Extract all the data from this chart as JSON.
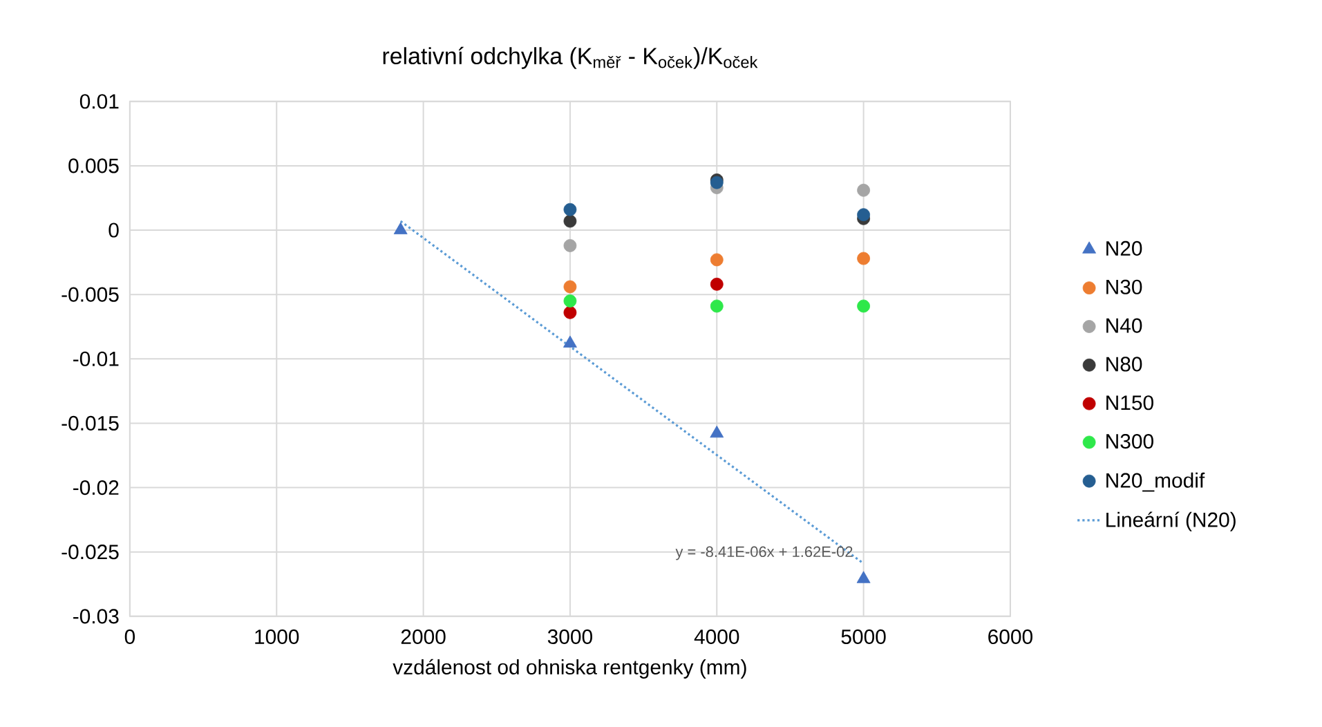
{
  "chart_data": {
    "type": "scatter",
    "title": "relativní odchylka (K$_{měř}$ - K$_{oček}$)/K$_{oček}$",
    "xlabel": "vzdálenost od ohniska rentgenky (mm)",
    "x": [
      3000,
      4000,
      5000
    ],
    "xlim": [
      0,
      6000
    ],
    "xticks": [
      0,
      1000,
      2000,
      3000,
      4000,
      5000,
      6000
    ],
    "ylim": [
      -0.03,
      0.01
    ],
    "yticks": [
      -0.03,
      -0.025,
      -0.02,
      -0.015,
      -0.01,
      -0.005,
      0,
      0.005,
      0.01
    ],
    "grid": true,
    "legend": "right",
    "series": [
      {
        "name": "N20",
        "color": "#4472c4",
        "marker": "triangle",
        "x": [
          1845,
          3000,
          4000,
          5000
        ],
        "values": [
          0.0,
          -0.0088,
          -0.0158,
          -0.0271
        ]
      },
      {
        "name": "N30",
        "color": "#ed7d31",
        "marker": "circle",
        "values": [
          -0.0044,
          -0.0023,
          -0.0022
        ]
      },
      {
        "name": "N40",
        "color": "#a5a5a5",
        "marker": "circle",
        "values": [
          -0.0012,
          0.0033,
          0.0031
        ]
      },
      {
        "name": "N80",
        "color": "#3a3a3a",
        "marker": "circle",
        "values": [
          0.0007,
          0.0039,
          0.0009
        ]
      },
      {
        "name": "N150",
        "color": "#c00000",
        "marker": "circle",
        "values": [
          -0.0064,
          -0.0042,
          null
        ]
      },
      {
        "name": "N300",
        "color": "#2ee84a",
        "marker": "circle",
        "values": [
          -0.0055,
          -0.0059,
          -0.0059
        ]
      },
      {
        "name": "N20_modif",
        "color": "#255e91",
        "marker": "circle",
        "values": [
          0.0016,
          0.0037,
          0.0012
        ]
      },
      {
        "name": "Lineární (N20)",
        "type": "line",
        "color": "#5b9bd5",
        "line_style": "dotted",
        "x": [
          1845,
          5000
        ],
        "values": [
          0.0007,
          -0.0259
        ]
      }
    ],
    "annotations": [
      "y = -8.41E-06x + 1.62E-02"
    ]
  }
}
